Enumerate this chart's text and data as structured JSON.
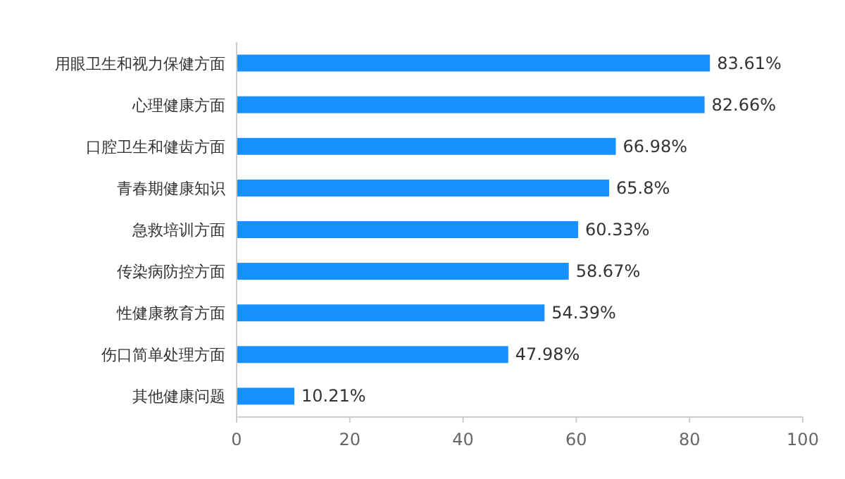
{
  "chart_data": {
    "type": "bar",
    "orientation": "horizontal",
    "categories": [
      "用眼卫生和视力保健方面",
      "心理健康方面",
      "口腔卫生和健齿方面",
      "青春期健康知识",
      "急救培训方面",
      "传染病防控方面",
      "性健康教育方面",
      "伤口简单处理方面",
      "其他健康问题"
    ],
    "values": [
      83.61,
      82.66,
      66.98,
      65.8,
      60.33,
      58.67,
      54.39,
      47.98,
      10.21
    ],
    "value_labels": [
      "83.61%",
      "82.66%",
      "66.98%",
      "65.8%",
      "60.33%",
      "58.67%",
      "54.39%",
      "47.98%",
      "10.21%"
    ],
    "color": "#1890ff",
    "xlim": [
      0,
      100
    ],
    "xticks": [
      0,
      20,
      40,
      60,
      80,
      100
    ]
  }
}
